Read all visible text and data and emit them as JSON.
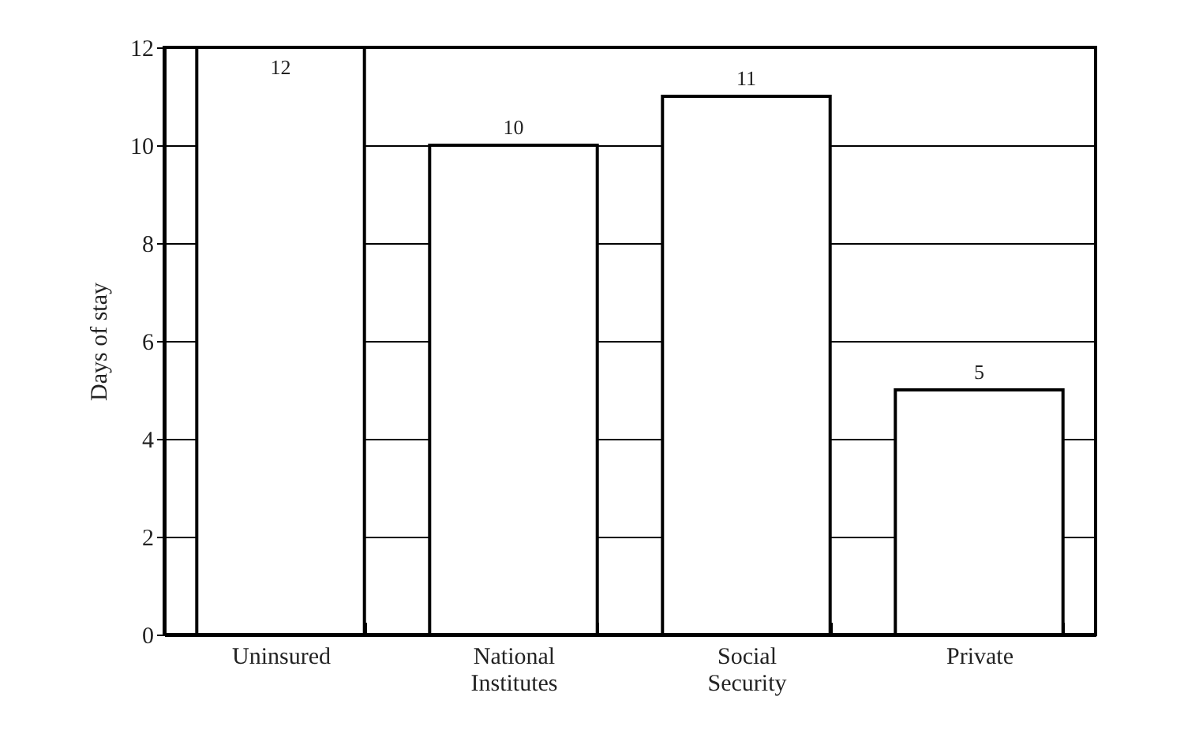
{
  "chart_data": {
    "type": "bar",
    "ylabel": "Days of stay",
    "categories": [
      "Uninsured",
      "National Institutes",
      "Social Security",
      "Private"
    ],
    "values": [
      12,
      10,
      11,
      5
    ],
    "color": "#ffffff",
    "ylim": [
      0,
      12
    ],
    "yticks": [
      0,
      2,
      4,
      6,
      8,
      10,
      12
    ],
    "grid": "y",
    "data_labels": true
  }
}
